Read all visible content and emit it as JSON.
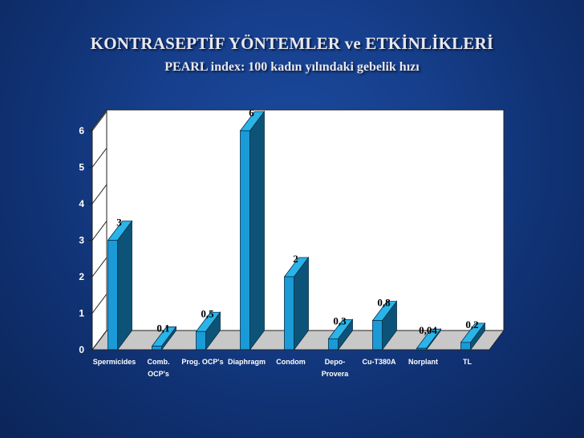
{
  "slide": {
    "title": "KONTRASEPTİF YÖNTEMLER ve ETKİNLİKLERİ",
    "subtitle": "PEARL index: 100 kadın yılındaki gebelik hızı"
  },
  "chart_data": {
    "type": "bar",
    "categories": [
      [
        "Spermicides"
      ],
      [
        "Comb.",
        "OCP's"
      ],
      [
        "Prog. OCP's"
      ],
      [
        "Diaphragm"
      ],
      [
        "Condom"
      ],
      [
        "Depo-",
        "Provera"
      ],
      [
        "Cu-T380A"
      ],
      [
        "Norplant"
      ],
      [
        "TL"
      ]
    ],
    "values": [
      3,
      0.1,
      0.5,
      6,
      2,
      0.3,
      0.8,
      0.04,
      0.2
    ],
    "data_labels": [
      "3",
      "0,1",
      "0,5",
      "6",
      "2",
      "0,3",
      "0,8",
      "0,04",
      "0,2"
    ],
    "yticks": [
      "0",
      "1",
      "2",
      "3",
      "4",
      "5",
      "6"
    ],
    "ylim": [
      0,
      6
    ],
    "grid": false,
    "style": "3d-bar",
    "colors": {
      "bar_front": "#1a9ad6",
      "bar_top": "#2ab4e8",
      "bar_side": "#0d5378",
      "wall": "#ffffff",
      "floor": "#c8c8c8",
      "axis": "#222222"
    }
  }
}
